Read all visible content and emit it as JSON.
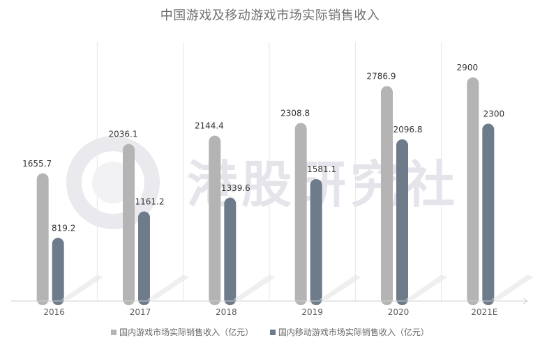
{
  "chart_data": {
    "type": "bar",
    "title": "中国游戏及移动游戏市场实际销售收入",
    "categories": [
      "2016",
      "2017",
      "2018",
      "2019",
      "2020",
      "2021E"
    ],
    "series": [
      {
        "name": "国内游戏市场实际销售收入（亿元）",
        "values": [
          1655.7,
          2036.1,
          2144.4,
          2308.8,
          2786.9,
          2900
        ],
        "color": "#b4b4b4"
      },
      {
        "name": "国内移动游戏市场实际销售收入（亿元）",
        "values": [
          819.2,
          1161.2,
          1339.6,
          1581.1,
          2096.8,
          2300
        ],
        "color": "#6e7b8b"
      }
    ],
    "ylim": [
      0,
      3000
    ],
    "grid": "vertical",
    "legend_position": "bottom",
    "watermark": "港股研究社"
  }
}
